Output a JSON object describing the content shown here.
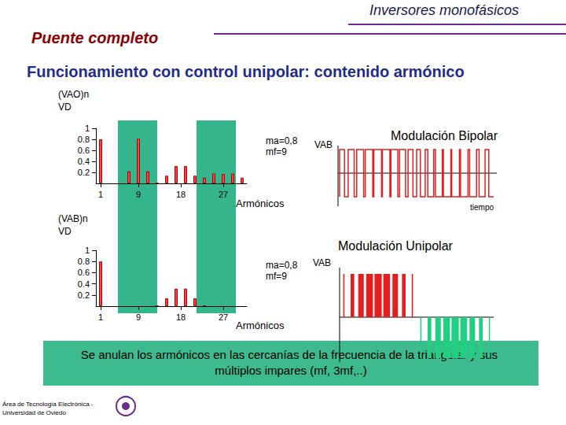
{
  "slide": {
    "header": "Inversores monofásicos",
    "section": "Puente completo",
    "title": "Funcionamiento con control unipolar: contenido armónico",
    "conclusion": "Se anulan los armónicos en las cercanías de la frecuencia de la triangular y sus múltiplos impares (mf, 3mf,..)",
    "footer": "Área de Tecnología Electrónica -\nUniversidad de Oviedo"
  },
  "waveforms": [
    {
      "title": "Modulación Bipolar",
      "ylabel": "VAB",
      "xlabel": "tiempo"
    },
    {
      "title": "Modulación Unipolar",
      "ylabel": "VAB"
    }
  ],
  "chart_data": [
    {
      "type": "bar",
      "ylabel": "(VAO)n\nVD",
      "xlabel": "Armónicos",
      "annotations": [
        "ma=0,8",
        "mf=9"
      ],
      "x": [
        1,
        7,
        9,
        11,
        13,
        15,
        17,
        19,
        21,
        23,
        25,
        27,
        29,
        31
      ],
      "values": [
        0.8,
        0.22,
        0.818,
        0.22,
        0.013,
        0.139,
        0.314,
        0.314,
        0.139,
        0.104,
        0.176,
        0.171,
        0.176,
        0.104
      ],
      "color": "#f04848",
      "xlim": [
        0,
        32
      ],
      "xticks": [
        1,
        9,
        18,
        27
      ],
      "ylim": [
        0,
        1
      ],
      "yticks": [
        0.2,
        0.4,
        0.6,
        0.8,
        1
      ],
      "grid": false
    },
    {
      "type": "bar",
      "ylabel": "(VAB)n\nVD",
      "xlabel": "Armónicos",
      "annotations": [
        "ma=0,8",
        "mf=9"
      ],
      "x": [
        1,
        13,
        15,
        17,
        19,
        21,
        23
      ],
      "values": [
        0.8,
        0.013,
        0.139,
        0.314,
        0.314,
        0.139,
        0.013
      ],
      "color": "#f04848",
      "xlim": [
        0,
        32
      ],
      "xticks": [
        1,
        9,
        18,
        27
      ],
      "ylim": [
        0,
        1
      ],
      "yticks": [
        0.2,
        0.4,
        0.6,
        0.8,
        1
      ],
      "grid": false
    }
  ]
}
